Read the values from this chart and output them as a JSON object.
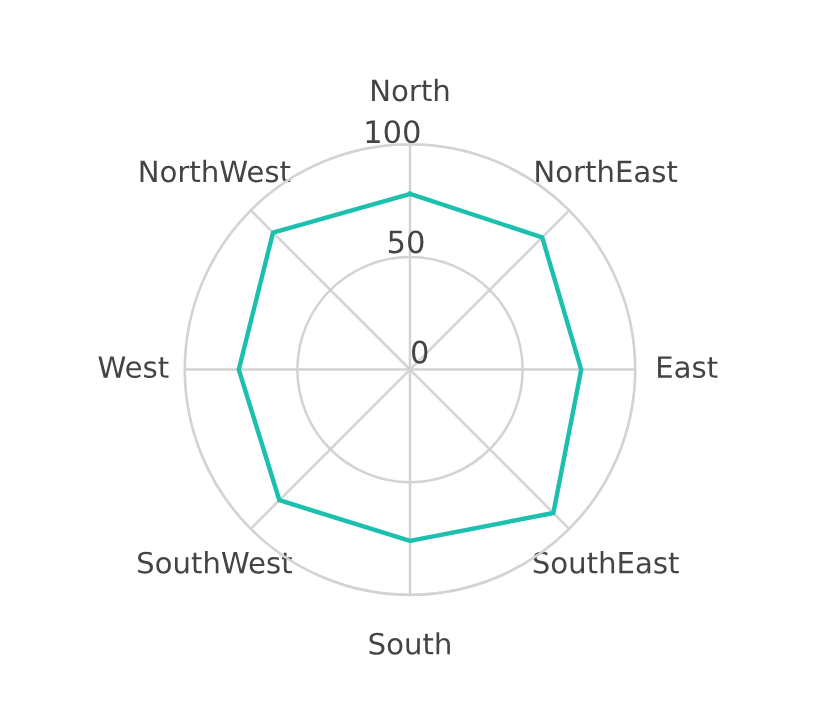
{
  "chart_data": {
    "type": "radar",
    "categories": [
      "North",
      "NorthEast",
      "East",
      "SouthEast",
      "South",
      "SouthWest",
      "West",
      "NorthWest"
    ],
    "series": [
      {
        "color": "#1dbfae",
        "values": [
          78,
          83,
          76,
          90,
          76,
          82,
          76,
          86
        ]
      }
    ],
    "ylim": [
      0,
      100
    ],
    "yticks": [
      0,
      50,
      100
    ],
    "grid": true,
    "marker": "none",
    "line_style": "solid"
  }
}
